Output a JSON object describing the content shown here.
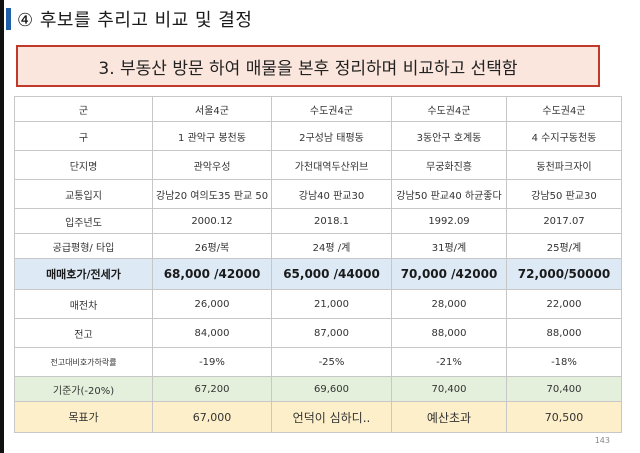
{
  "heading": "④ 후보를 추리고 비교 및 결정",
  "title": "3. 부동산 방문 하여 매물을 본후  정리하며  비교하고 선택함",
  "table": {
    "rows": [
      {
        "label": "군",
        "cells": [
          "서울4군",
          "수도권4군",
          "수도권4군",
          "수도권4군"
        ]
      },
      {
        "label": "구",
        "cells": [
          "1 관악구 봉천동",
          "2구성남 태평동",
          "3동안구 호계동",
          "4 수지구동천동"
        ]
      },
      {
        "label": "단지명",
        "cells": [
          "관악우성",
          "가천대역두산위브",
          "무궁화진흥",
          "동천파크자이"
        ]
      },
      {
        "label": "교통입지",
        "cells": [
          "강남20 여의도35 판교 50",
          "강남40 판교30",
          "강남50  판교40 하균좋다",
          "강남50 판교30"
        ]
      },
      {
        "label": "입주년도",
        "cells": [
          "2000.12",
          "2018.1",
          "1992.09",
          "2017.07"
        ]
      },
      {
        "label": "공급평형/ 타입",
        "cells": [
          "26평/복",
          "24평 /계",
          "31평/계",
          "25평/계"
        ]
      },
      {
        "label": "매매호가/전세가",
        "cells": [
          "68,000 /42000",
          "65,000 /44000",
          "70,000 /42000",
          "72,000/50000"
        ]
      },
      {
        "label": "매전차",
        "cells": [
          "26,000",
          "21,000",
          "28,000",
          "22,000"
        ]
      },
      {
        "label": "전고",
        "cells": [
          "84,000",
          "87,000",
          "88,000",
          "88,000"
        ]
      },
      {
        "label": "전고대비호가하락률",
        "cells": [
          "-19%",
          "-25%",
          "-21%",
          "-18%"
        ]
      },
      {
        "label": "기준가(-20%)",
        "cells": [
          "67,200",
          "69,600",
          "70,400",
          "70,400"
        ]
      },
      {
        "label": "목표가",
        "cells": [
          "67,000",
          "언덕이 심하디..",
          "예산초과",
          "70,500"
        ]
      }
    ]
  },
  "page_number": "143"
}
